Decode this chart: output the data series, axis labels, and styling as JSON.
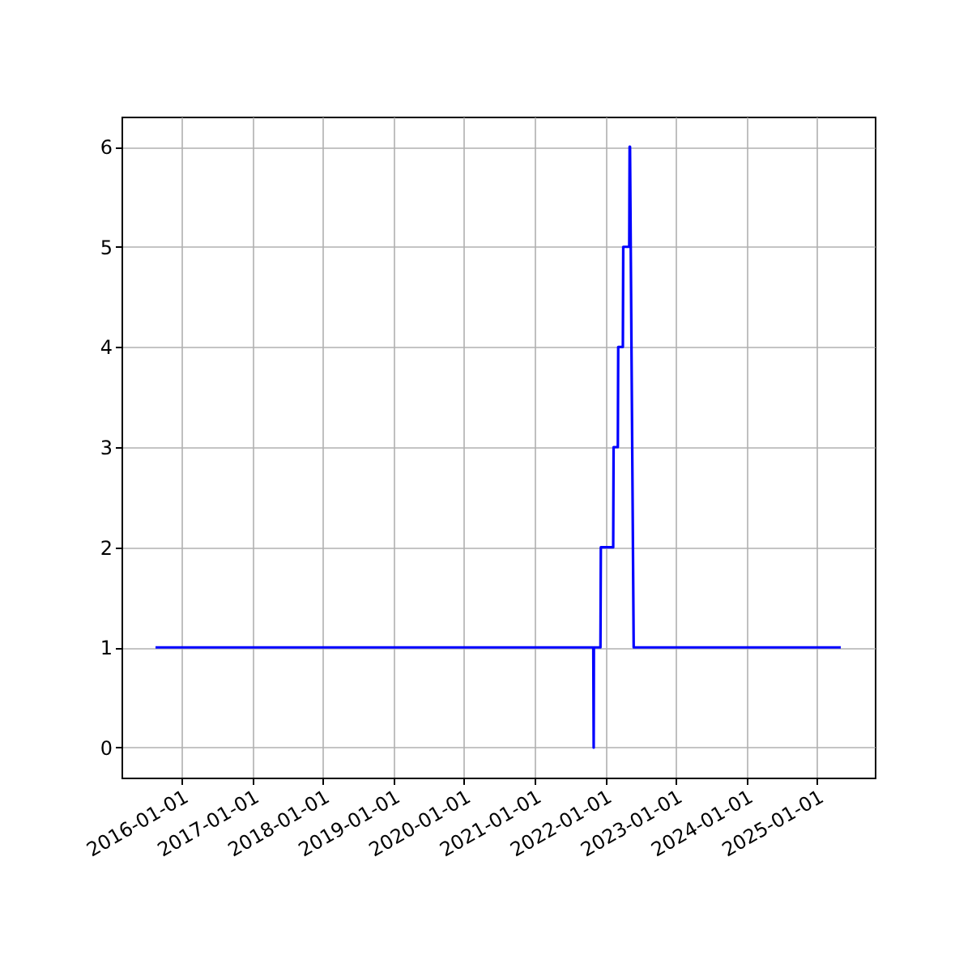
{
  "chart_data": {
    "type": "line",
    "x": [
      "2015-08-19",
      "2021-11-01",
      "2021-11-03",
      "2021-11-04",
      "2021-12-08",
      "2021-12-10",
      "2022-02-12",
      "2022-02-14",
      "2022-03-08",
      "2022-03-10",
      "2022-04-03",
      "2022-04-05",
      "2022-05-06",
      "2022-05-08",
      "2022-05-10",
      "2022-05-29",
      "2025-05-05"
    ],
    "series": [
      {
        "color": "#0000ff",
        "values": [
          1,
          1,
          0,
          1,
          1,
          2,
          2,
          3,
          3,
          4,
          4,
          5,
          5,
          6,
          6,
          1,
          1
        ]
      }
    ],
    "xlim": [
      "2015-02-24",
      "2025-10-28"
    ],
    "xticks": [
      "2016-01-01",
      "2017-01-01",
      "2018-01-01",
      "2019-01-01",
      "2020-01-01",
      "2021-01-01",
      "2022-01-01",
      "2023-01-01",
      "2024-01-01",
      "2025-01-01"
    ],
    "ylim": [
      -0.3,
      6.3
    ],
    "yticks": [
      0,
      1,
      2,
      3,
      4,
      5,
      6
    ],
    "grid": true
  }
}
